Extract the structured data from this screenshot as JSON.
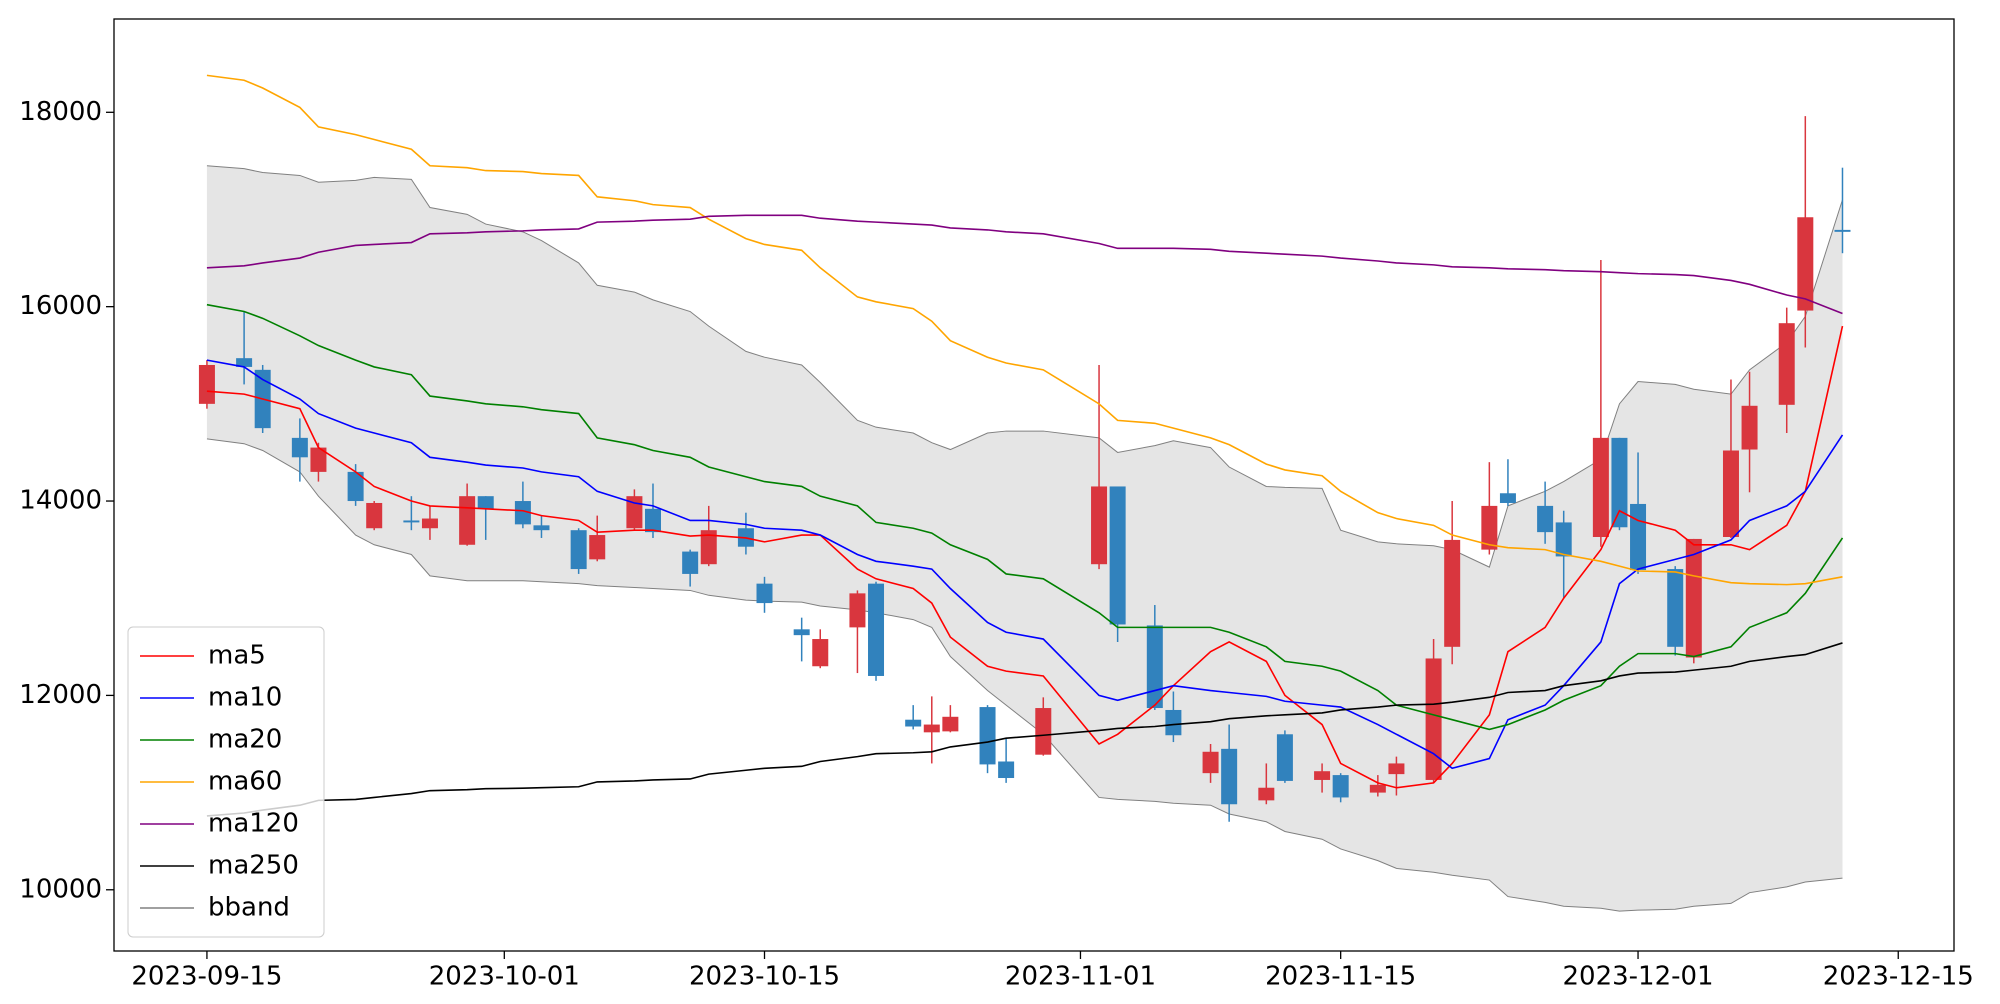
{
  "chart_data": {
    "type": "candlestick",
    "x": [
      "2023-09-15",
      "2023-09-17",
      "2023-09-18",
      "2023-09-20",
      "2023-09-21",
      "2023-09-23",
      "2023-09-24",
      "2023-09-26",
      "2023-09-27",
      "2023-09-29",
      "2023-09-30",
      "2023-10-02",
      "2023-10-03",
      "2023-10-05",
      "2023-10-06",
      "2023-10-08",
      "2023-10-09",
      "2023-10-11",
      "2023-10-12",
      "2023-10-14",
      "2023-10-15",
      "2023-10-17",
      "2023-10-18",
      "2023-10-20",
      "2023-10-21",
      "2023-10-23",
      "2023-10-24",
      "2023-10-25",
      "2023-10-27",
      "2023-10-28",
      "2023-10-30",
      "2023-11-02",
      "2023-11-03",
      "2023-11-05",
      "2023-11-06",
      "2023-11-08",
      "2023-11-09",
      "2023-11-11",
      "2023-11-12",
      "2023-11-14",
      "2023-11-15",
      "2023-11-17",
      "2023-11-18",
      "2023-11-20",
      "2023-11-21",
      "2023-11-23",
      "2023-11-24",
      "2023-11-26",
      "2023-11-27",
      "2023-11-29",
      "2023-11-30",
      "2023-12-01",
      "2023-12-03",
      "2023-12-04",
      "2023-12-06",
      "2023-12-07",
      "2023-12-09",
      "2023-12-10",
      "2023-12-12"
    ],
    "open": [
      15000,
      15470,
      15350,
      14650,
      14300,
      14300,
      13720,
      13800,
      13720,
      13550,
      14050,
      14000,
      13750,
      13700,
      13400,
      13720,
      13920,
      13480,
      13350,
      13720,
      13150,
      12680,
      12300,
      12700,
      13150,
      11750,
      11620,
      11630,
      11880,
      11320,
      11390,
      13350,
      14150,
      12720,
      11850,
      11200,
      11450,
      10920,
      11600,
      11130,
      11180,
      11000,
      11190,
      11130,
      12500,
      13500,
      14080,
      13950,
      13780,
      13630,
      14650,
      13970,
      13300,
      12390,
      13630,
      14530,
      14990,
      15960,
      16790
    ],
    "high": [
      15450,
      15950,
      15400,
      14850,
      14600,
      14380,
      14000,
      14050,
      13950,
      14180,
      14050,
      14200,
      13850,
      13720,
      13850,
      14120,
      14180,
      13500,
      13950,
      13880,
      13220,
      12800,
      12680,
      13080,
      13170,
      11900,
      11990,
      11900,
      11900,
      11560,
      11980,
      15400,
      14150,
      12930,
      12040,
      11500,
      11700,
      11300,
      11640,
      11300,
      11200,
      11180,
      11370,
      12580,
      14000,
      14400,
      14430,
      14200,
      13900,
      16480,
      14650,
      14500,
      13330,
      13610,
      15250,
      15330,
      15990,
      17960,
      17430
    ],
    "low": [
      14950,
      15200,
      14700,
      14200,
      14200,
      13950,
      13700,
      13700,
      13600,
      13540,
      13600,
      13720,
      13620,
      13250,
      13380,
      13700,
      13620,
      13120,
      13330,
      13450,
      12850,
      12350,
      12280,
      12230,
      12150,
      11650,
      11300,
      11620,
      11200,
      11100,
      11380,
      13300,
      12550,
      11850,
      11520,
      11100,
      10700,
      10880,
      11100,
      11000,
      10900,
      10960,
      10970,
      11100,
      12320,
      13450,
      13950,
      13560,
      13000,
      13530,
      13700,
      13250,
      12410,
      12330,
      13620,
      14090,
      14700,
      15580,
      16550
    ],
    "close": [
      15400,
      15380,
      14750,
      14450,
      14550,
      14000,
      13980,
      13780,
      13820,
      14050,
      13920,
      13760,
      13700,
      13300,
      13650,
      14050,
      13680,
      13250,
      13700,
      13530,
      12950,
      12620,
      12580,
      13050,
      12200,
      11680,
      11700,
      11780,
      11290,
      11150,
      11870,
      14150,
      12730,
      11870,
      11590,
      11420,
      10880,
      11050,
      11120,
      11220,
      10950,
      11080,
      11300,
      12380,
      13600,
      13950,
      13980,
      13680,
      13430,
      14650,
      13730,
      13290,
      12500,
      13610,
      14520,
      14980,
      15830,
      16920,
      16770
    ],
    "up_color": "#d9363e",
    "down_color": "#3182bd",
    "series": [
      {
        "name": "ma5",
        "color": "#ff0000",
        "values": [
          15130,
          15100,
          15050,
          14950,
          14550,
          14300,
          14150,
          14000,
          13950,
          13930,
          13920,
          13900,
          13850,
          13800,
          13680,
          13700,
          13700,
          13640,
          13650,
          13620,
          13580,
          13650,
          13650,
          13300,
          13200,
          13100,
          12950,
          12600,
          12300,
          12250,
          12200,
          11500,
          11600,
          11900,
          12100,
          12450,
          12550,
          12350,
          12000,
          11700,
          11300,
          11100,
          11050,
          11100,
          11300,
          11800,
          12450,
          12700,
          13000,
          13500,
          13900,
          13800,
          13700,
          13550,
          13550,
          13500,
          13750,
          14100,
          15800
        ]
      },
      {
        "name": "ma10",
        "color": "#0000ff",
        "values": [
          15450,
          15380,
          15250,
          15050,
          14900,
          14750,
          14700,
          14600,
          14450,
          14400,
          14370,
          14340,
          14300,
          14250,
          14100,
          13980,
          13950,
          13800,
          13800,
          13760,
          13720,
          13700,
          13650,
          13450,
          13380,
          13330,
          13300,
          13100,
          12750,
          12650,
          12580,
          12000,
          11950,
          12050,
          12100,
          12050,
          12030,
          11990,
          11940,
          11900,
          11880,
          11700,
          11600,
          11400,
          11250,
          11350,
          11750,
          11900,
          12100,
          12550,
          13150,
          13300,
          13400,
          13450,
          13600,
          13800,
          13950,
          14100,
          14680
        ]
      },
      {
        "name": "ma20",
        "color": "#008000",
        "values": [
          16020,
          15950,
          15880,
          15700,
          15600,
          15450,
          15380,
          15300,
          15080,
          15030,
          15000,
          14970,
          14940,
          14900,
          14650,
          14580,
          14520,
          14450,
          14350,
          14250,
          14200,
          14150,
          14050,
          13950,
          13780,
          13720,
          13670,
          13550,
          13400,
          13250,
          13200,
          12850,
          12700,
          12700,
          12700,
          12700,
          12650,
          12500,
          12350,
          12300,
          12250,
          12050,
          11900,
          11800,
          11750,
          11650,
          11700,
          11850,
          11950,
          12100,
          12300,
          12430,
          12430,
          12400,
          12500,
          12700,
          12850,
          13050,
          13620
        ]
      },
      {
        "name": "ma60",
        "color": "#ffa500",
        "values": [
          18380,
          18330,
          18250,
          18050,
          17850,
          17770,
          17720,
          17620,
          17450,
          17430,
          17400,
          17390,
          17370,
          17350,
          17130,
          17090,
          17050,
          17020,
          16900,
          16700,
          16640,
          16580,
          16400,
          16100,
          16050,
          15980,
          15850,
          15650,
          15480,
          15420,
          15350,
          15000,
          14830,
          14800,
          14750,
          14650,
          14580,
          14380,
          14320,
          14260,
          14100,
          13880,
          13820,
          13750,
          13650,
          13550,
          13520,
          13500,
          13450,
          13380,
          13330,
          13280,
          13270,
          13230,
          13160,
          13150,
          13140,
          13150,
          13220
        ]
      },
      {
        "name": "ma120",
        "color": "#800080",
        "values": [
          16400,
          16420,
          16450,
          16500,
          16560,
          16630,
          16640,
          16660,
          16750,
          16760,
          16770,
          16780,
          16790,
          16800,
          16870,
          16880,
          16890,
          16900,
          16930,
          16940,
          16940,
          16940,
          16910,
          16880,
          16870,
          16850,
          16840,
          16810,
          16790,
          16770,
          16750,
          16650,
          16600,
          16600,
          16600,
          16590,
          16570,
          16550,
          16540,
          16520,
          16500,
          16470,
          16450,
          16430,
          16410,
          16400,
          16390,
          16380,
          16370,
          16360,
          16350,
          16340,
          16330,
          16320,
          16270,
          16230,
          16120,
          16080,
          15930
        ]
      },
      {
        "name": "ma250",
        "color": "#000000",
        "values": [
          10760,
          10790,
          10820,
          10870,
          10920,
          10930,
          10950,
          10990,
          11020,
          11030,
          11040,
          11045,
          11050,
          11060,
          11110,
          11120,
          11130,
          11140,
          11190,
          11230,
          11250,
          11270,
          11320,
          11370,
          11400,
          11410,
          11420,
          11470,
          11520,
          11560,
          11590,
          11640,
          11660,
          11680,
          11700,
          11730,
          11760,
          11790,
          11800,
          11820,
          11850,
          11880,
          11900,
          11910,
          11930,
          11980,
          12030,
          12050,
          12100,
          12150,
          12200,
          12230,
          12240,
          12260,
          12300,
          12350,
          12400,
          12420,
          12540
        ]
      }
    ],
    "band": {
      "name": "bband",
      "color": "#808080",
      "fill": "#e5e5e5",
      "upper": [
        17450,
        17420,
        17380,
        17350,
        17280,
        17300,
        17330,
        17310,
        17020,
        16950,
        16850,
        16770,
        16680,
        16450,
        16220,
        16150,
        16070,
        15950,
        15800,
        15540,
        15480,
        15400,
        15220,
        14830,
        14760,
        14700,
        14600,
        14530,
        14700,
        14720,
        14720,
        14650,
        14500,
        14570,
        14620,
        14550,
        14350,
        14150,
        14140,
        14130,
        13700,
        13580,
        13560,
        13540,
        13500,
        13320,
        13950,
        14100,
        14200,
        14430,
        15000,
        15230,
        15200,
        15150,
        15100,
        15350,
        15630,
        15900,
        17100
      ],
      "lower": [
        14640,
        14590,
        14520,
        14300,
        14050,
        13650,
        13550,
        13450,
        13230,
        13180,
        13180,
        13180,
        13170,
        13150,
        13130,
        13110,
        13100,
        13080,
        13030,
        12980,
        12970,
        12960,
        12920,
        12880,
        12850,
        12780,
        12700,
        12400,
        12050,
        11900,
        11600,
        10950,
        10930,
        10910,
        10890,
        10870,
        10780,
        10700,
        10600,
        10520,
        10420,
        10300,
        10220,
        10180,
        10150,
        10100,
        9930,
        9870,
        9830,
        9810,
        9780,
        9790,
        9800,
        9830,
        9860,
        9970,
        10030,
        10080,
        10120
      ]
    },
    "xlim": [
      "2023-09-10",
      "2023-12-18"
    ],
    "xticks": [
      "2023-09-15",
      "2023-10-01",
      "2023-10-15",
      "2023-11-01",
      "2023-11-15",
      "2023-12-01",
      "2023-12-15"
    ],
    "ylim": [
      9370,
      18960
    ],
    "yticks": [
      10000,
      12000,
      14000,
      16000,
      18000
    ],
    "legend": "lower left"
  }
}
